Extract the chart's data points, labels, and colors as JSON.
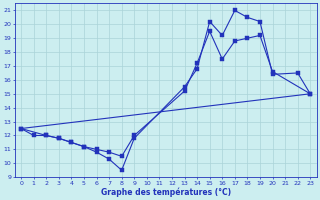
{
  "title": "Graphe des températures (°C)",
  "bg_color": "#cceef0",
  "line_color": "#2233bb",
  "grid_color": "#aad4d8",
  "xlim": [
    -0.5,
    23.5
  ],
  "ylim": [
    9,
    21.5
  ],
  "xticks": [
    0,
    1,
    2,
    3,
    4,
    5,
    6,
    7,
    8,
    9,
    10,
    11,
    12,
    13,
    14,
    15,
    16,
    17,
    18,
    19,
    20,
    21,
    22,
    23
  ],
  "yticks": [
    9,
    10,
    11,
    12,
    13,
    14,
    15,
    16,
    17,
    18,
    19,
    20,
    21
  ],
  "series1_x": [
    0,
    1,
    2,
    3,
    4,
    5,
    6,
    7,
    8,
    9,
    13,
    14,
    15,
    16,
    17,
    18,
    19,
    20,
    22,
    23
  ],
  "series1_y": [
    12.5,
    12.0,
    12.0,
    11.8,
    11.5,
    11.2,
    10.8,
    10.3,
    9.5,
    11.8,
    15.5,
    16.8,
    20.2,
    19.2,
    21.0,
    20.5,
    20.2,
    16.4,
    16.5,
    15.0
  ],
  "series2_x": [
    0,
    2,
    3,
    4,
    5,
    6,
    7,
    8,
    9,
    13,
    14,
    15,
    16,
    17,
    18,
    19,
    20,
    23
  ],
  "series2_y": [
    12.5,
    12.0,
    11.8,
    11.5,
    11.2,
    11.0,
    10.8,
    10.5,
    12.0,
    15.2,
    17.2,
    19.5,
    17.5,
    18.8,
    19.0,
    19.2,
    16.6,
    15.0
  ],
  "series3_x": [
    0,
    23
  ],
  "series3_y": [
    12.5,
    15.0
  ],
  "marker_x1": [
    0,
    1,
    2,
    3,
    4,
    5,
    6,
    7,
    8,
    9,
    13,
    14,
    15,
    16,
    17,
    18,
    19,
    20,
    22,
    23
  ],
  "marker_y1": [
    12.5,
    12.0,
    12.0,
    11.8,
    11.5,
    11.2,
    10.8,
    10.3,
    9.5,
    11.8,
    15.5,
    16.8,
    20.2,
    19.2,
    21.0,
    20.5,
    20.2,
    16.4,
    16.5,
    15.0
  ],
  "marker_x2": [
    0,
    2,
    3,
    4,
    5,
    6,
    7,
    8,
    9,
    13,
    14,
    15,
    16,
    17,
    18,
    19,
    20,
    23
  ],
  "marker_y2": [
    12.5,
    12.0,
    11.8,
    11.5,
    11.2,
    11.0,
    10.8,
    10.5,
    12.0,
    15.2,
    17.2,
    19.5,
    17.5,
    18.8,
    19.0,
    19.2,
    16.6,
    15.0
  ]
}
